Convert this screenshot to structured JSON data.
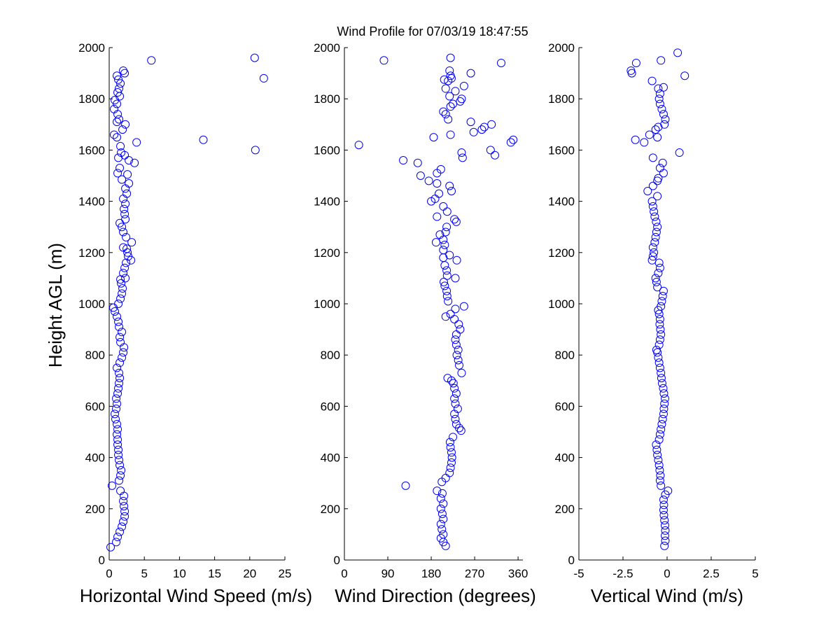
{
  "chart_data": [
    {
      "type": "scatter",
      "title": "Wind Profile for  07/03/19 18:47:55",
      "xlabel": "Horizontal Wind Speed (m/s)",
      "ylabel": "Height AGL (m)",
      "xlim": [
        0,
        25
      ],
      "ylim": [
        0,
        2000
      ],
      "xticks": [
        "0",
        "5",
        "10",
        "15",
        "20",
        "25"
      ],
      "yticks": [
        "0",
        "200",
        "400",
        "600",
        "800",
        "1000",
        "1200",
        "1400",
        "1600",
        "1800",
        "2000"
      ],
      "marker_color": "#0000ff",
      "points": [
        [
          0.2,
          50
        ],
        [
          1.0,
          70
        ],
        [
          1.2,
          90
        ],
        [
          1.5,
          110
        ],
        [
          1.8,
          130
        ],
        [
          2.0,
          150
        ],
        [
          2.2,
          170
        ],
        [
          2.2,
          190
        ],
        [
          2.1,
          210
        ],
        [
          2.0,
          230
        ],
        [
          2.1,
          250
        ],
        [
          1.6,
          270
        ],
        [
          0.4,
          290
        ],
        [
          1.4,
          310
        ],
        [
          1.6,
          330
        ],
        [
          1.7,
          350
        ],
        [
          1.5,
          370
        ],
        [
          1.4,
          390
        ],
        [
          1.3,
          410
        ],
        [
          1.3,
          430
        ],
        [
          1.2,
          450
        ],
        [
          1.2,
          470
        ],
        [
          1.1,
          490
        ],
        [
          1.2,
          510
        ],
        [
          1.1,
          530
        ],
        [
          0.9,
          550
        ],
        [
          0.8,
          570
        ],
        [
          1.0,
          590
        ],
        [
          1.1,
          610
        ],
        [
          1.0,
          630
        ],
        [
          1.2,
          650
        ],
        [
          1.3,
          670
        ],
        [
          1.4,
          690
        ],
        [
          1.5,
          710
        ],
        [
          1.4,
          730
        ],
        [
          1.1,
          750
        ],
        [
          1.5,
          770
        ],
        [
          1.8,
          790
        ],
        [
          2.0,
          810
        ],
        [
          2.1,
          830
        ],
        [
          1.6,
          850
        ],
        [
          1.5,
          870
        ],
        [
          1.8,
          890
        ],
        [
          1.4,
          910
        ],
        [
          1.3,
          930
        ],
        [
          1.1,
          950
        ],
        [
          0.8,
          970
        ],
        [
          0.6,
          985
        ],
        [
          1.3,
          1000
        ],
        [
          1.6,
          1020
        ],
        [
          1.8,
          1040
        ],
        [
          1.9,
          1060
        ],
        [
          1.7,
          1080
        ],
        [
          1.6,
          1095
        ],
        [
          2.3,
          1100
        ],
        [
          2.0,
          1120
        ],
        [
          2.2,
          1140
        ],
        [
          2.4,
          1160
        ],
        [
          3.1,
          1170
        ],
        [
          2.7,
          1185
        ],
        [
          2.6,
          1200
        ],
        [
          2.5,
          1215
        ],
        [
          2.0,
          1220
        ],
        [
          3.2,
          1240
        ],
        [
          2.4,
          1260
        ],
        [
          2.0,
          1280
        ],
        [
          1.8,
          1300
        ],
        [
          1.5,
          1315
        ],
        [
          2.3,
          1330
        ],
        [
          2.2,
          1350
        ],
        [
          2.1,
          1370
        ],
        [
          2.3,
          1390
        ],
        [
          2.0,
          1410
        ],
        [
          2.5,
          1430
        ],
        [
          2.3,
          1450
        ],
        [
          2.8,
          1470
        ],
        [
          1.8,
          1485
        ],
        [
          2.6,
          1505
        ],
        [
          1.2,
          1510
        ],
        [
          1.5,
          1530
        ],
        [
          3.6,
          1550
        ],
        [
          2.8,
          1560
        ],
        [
          1.3,
          1570
        ],
        [
          2.2,
          1580
        ],
        [
          1.7,
          1590
        ],
        [
          1.6,
          1615
        ],
        [
          3.9,
          1630
        ],
        [
          13.4,
          1640
        ],
        [
          20.8,
          1600
        ],
        [
          1.1,
          1650
        ],
        [
          0.7,
          1660
        ],
        [
          1.9,
          1680
        ],
        [
          2.3,
          1700
        ],
        [
          1.1,
          1710
        ],
        [
          1.4,
          1720
        ],
        [
          1.2,
          1740
        ],
        [
          0.7,
          1760
        ],
        [
          1.1,
          1780
        ],
        [
          0.8,
          1795
        ],
        [
          1.5,
          1810
        ],
        [
          1.2,
          1825
        ],
        [
          1.4,
          1840
        ],
        [
          1.6,
          1860
        ],
        [
          1.3,
          1875
        ],
        [
          1.1,
          1890
        ],
        [
          2.0,
          1910
        ],
        [
          2.2,
          1900
        ],
        [
          6.0,
          1950
        ],
        [
          20.7,
          1960
        ],
        [
          22.0,
          1880
        ]
      ]
    },
    {
      "type": "scatter",
      "xlabel": "Wind Direction (degrees)",
      "ylabel": "",
      "xlim": [
        0,
        370
      ],
      "ylim": [
        0,
        2000
      ],
      "xticks": [
        "0",
        "90",
        "180",
        "270",
        "360"
      ],
      "xtick_values": [
        0,
        90,
        180,
        270,
        360
      ],
      "yticks": [
        "0",
        "200",
        "400",
        "600",
        "800",
        "1000",
        "1200",
        "1400",
        "1600",
        "1800",
        "2000"
      ],
      "marker_color": "#0000ff",
      "points": [
        [
          210,
          55
        ],
        [
          205,
          70
        ],
        [
          200,
          85
        ],
        [
          205,
          100
        ],
        [
          202,
          120
        ],
        [
          200,
          140
        ],
        [
          205,
          160
        ],
        [
          203,
          180
        ],
        [
          200,
          200
        ],
        [
          205,
          220
        ],
        [
          200,
          240
        ],
        [
          203,
          260
        ],
        [
          192,
          270
        ],
        [
          127,
          290
        ],
        [
          202,
          305
        ],
        [
          210,
          320
        ],
        [
          218,
          340
        ],
        [
          220,
          360
        ],
        [
          222,
          380
        ],
        [
          223,
          400
        ],
        [
          222,
          420
        ],
        [
          220,
          440
        ],
        [
          219,
          460
        ],
        [
          225,
          480
        ],
        [
          242,
          505
        ],
        [
          238,
          515
        ],
        [
          232,
          530
        ],
        [
          230,
          550
        ],
        [
          228,
          570
        ],
        [
          235,
          590
        ],
        [
          230,
          610
        ],
        [
          228,
          630
        ],
        [
          232,
          650
        ],
        [
          228,
          670
        ],
        [
          226,
          690
        ],
        [
          222,
          700
        ],
        [
          214,
          710
        ],
        [
          243,
          730
        ],
        [
          238,
          760
        ],
        [
          236,
          780
        ],
        [
          233,
          800
        ],
        [
          236,
          820
        ],
        [
          232,
          840
        ],
        [
          230,
          860
        ],
        [
          232,
          880
        ],
        [
          240,
          900
        ],
        [
          237,
          920
        ],
        [
          228,
          940
        ],
        [
          210,
          950
        ],
        [
          220,
          960
        ],
        [
          230,
          980
        ],
        [
          248,
          990
        ],
        [
          215,
          1010
        ],
        [
          213,
          1030
        ],
        [
          212,
          1050
        ],
        [
          208,
          1070
        ],
        [
          206,
          1085
        ],
        [
          230,
          1100
        ],
        [
          213,
          1110
        ],
        [
          212,
          1130
        ],
        [
          208,
          1150
        ],
        [
          233,
          1170
        ],
        [
          205,
          1180
        ],
        [
          218,
          1190
        ],
        [
          205,
          1210
        ],
        [
          208,
          1230
        ],
        [
          190,
          1240
        ],
        [
          205,
          1250
        ],
        [
          198,
          1270
        ],
        [
          210,
          1280
        ],
        [
          212,
          1300
        ],
        [
          232,
          1320
        ],
        [
          228,
          1330
        ],
        [
          192,
          1340
        ],
        [
          213,
          1360
        ],
        [
          205,
          1380
        ],
        [
          180,
          1400
        ],
        [
          188,
          1410
        ],
        [
          196,
          1430
        ],
        [
          222,
          1440
        ],
        [
          218,
          1460
        ],
        [
          192,
          1470
        ],
        [
          175,
          1480
        ],
        [
          158,
          1500
        ],
        [
          192,
          1510
        ],
        [
          200,
          1525
        ],
        [
          152,
          1550
        ],
        [
          122,
          1560
        ],
        [
          245,
          1570
        ],
        [
          243,
          1590
        ],
        [
          312,
          1580
        ],
        [
          303,
          1600
        ],
        [
          30,
          1620
        ],
        [
          185,
          1650
        ],
        [
          220,
          1660
        ],
        [
          345,
          1630
        ],
        [
          350,
          1640
        ],
        [
          268,
          1670
        ],
        [
          285,
          1680
        ],
        [
          290,
          1690
        ],
        [
          262,
          1710
        ],
        [
          305,
          1700
        ],
        [
          215,
          1720
        ],
        [
          210,
          1740
        ],
        [
          205,
          1750
        ],
        [
          220,
          1770
        ],
        [
          225,
          1780
        ],
        [
          240,
          1790
        ],
        [
          243,
          1800
        ],
        [
          218,
          1810
        ],
        [
          230,
          1830
        ],
        [
          210,
          1840
        ],
        [
          248,
          1850
        ],
        [
          215,
          1870
        ],
        [
          207,
          1875
        ],
        [
          222,
          1880
        ],
        [
          220,
          1890
        ],
        [
          262,
          1900
        ],
        [
          218,
          1910
        ],
        [
          325,
          1940
        ],
        [
          82,
          1950
        ],
        [
          220,
          1960
        ]
      ]
    },
    {
      "type": "scatter",
      "xlabel": "Vertical Wind (m/s)",
      "ylabel": "",
      "xlim": [
        -5,
        5
      ],
      "ylim": [
        0,
        2000
      ],
      "xticks": [
        "-5",
        "-2.5",
        "0",
        "2.5",
        "5"
      ],
      "xtick_values": [
        -5,
        -2.5,
        0,
        2.5,
        5
      ],
      "yticks": [
        "0",
        "200",
        "400",
        "600",
        "800",
        "1000",
        "1200",
        "1400",
        "1600",
        "1800",
        "2000"
      ],
      "marker_color": "#0000ff",
      "points": [
        [
          -0.15,
          55
        ],
        [
          -0.1,
          75
        ],
        [
          -0.12,
          95
        ],
        [
          -0.1,
          115
        ],
        [
          -0.12,
          135
        ],
        [
          -0.15,
          155
        ],
        [
          -0.18,
          175
        ],
        [
          -0.2,
          195
        ],
        [
          -0.18,
          215
        ],
        [
          -0.2,
          235
        ],
        [
          -0.1,
          255
        ],
        [
          0.05,
          270
        ],
        [
          -0.35,
          290
        ],
        [
          -0.4,
          310
        ],
        [
          -0.38,
          330
        ],
        [
          -0.42,
          350
        ],
        [
          -0.45,
          370
        ],
        [
          -0.5,
          390
        ],
        [
          -0.55,
          410
        ],
        [
          -0.58,
          430
        ],
        [
          -0.62,
          450
        ],
        [
          -0.45,
          470
        ],
        [
          -0.4,
          490
        ],
        [
          -0.35,
          510
        ],
        [
          -0.3,
          530
        ],
        [
          -0.25,
          550
        ],
        [
          -0.2,
          570
        ],
        [
          -0.18,
          590
        ],
        [
          -0.15,
          610
        ],
        [
          -0.12,
          630
        ],
        [
          -0.18,
          650
        ],
        [
          -0.22,
          670
        ],
        [
          -0.28,
          690
        ],
        [
          -0.32,
          710
        ],
        [
          -0.35,
          730
        ],
        [
          -0.4,
          750
        ],
        [
          -0.45,
          770
        ],
        [
          -0.5,
          790
        ],
        [
          -0.55,
          810
        ],
        [
          -0.6,
          820
        ],
        [
          -0.45,
          840
        ],
        [
          -0.4,
          860
        ],
        [
          -0.35,
          880
        ],
        [
          -0.38,
          900
        ],
        [
          -0.42,
          920
        ],
        [
          -0.4,
          940
        ],
        [
          -0.45,
          960
        ],
        [
          -0.5,
          975
        ],
        [
          -0.35,
          990
        ],
        [
          -0.3,
          1010
        ],
        [
          -0.25,
          1030
        ],
        [
          -0.2,
          1050
        ],
        [
          -0.55,
          1065
        ],
        [
          -0.6,
          1085
        ],
        [
          -0.65,
          1100
        ],
        [
          -0.5,
          1120
        ],
        [
          -0.4,
          1140
        ],
        [
          -0.45,
          1160
        ],
        [
          -0.85,
          1170
        ],
        [
          -0.8,
          1185
        ],
        [
          -0.75,
          1200
        ],
        [
          -0.8,
          1220
        ],
        [
          -0.7,
          1240
        ],
        [
          -0.65,
          1260
        ],
        [
          -0.6,
          1280
        ],
        [
          -0.55,
          1300
        ],
        [
          -0.62,
          1320
        ],
        [
          -0.7,
          1340
        ],
        [
          -0.75,
          1360
        ],
        [
          -0.8,
          1380
        ],
        [
          -0.85,
          1400
        ],
        [
          -0.55,
          1420
        ],
        [
          -1.1,
          1440
        ],
        [
          -0.8,
          1460
        ],
        [
          -0.55,
          1480
        ],
        [
          -0.5,
          1490
        ],
        [
          -0.2,
          1510
        ],
        [
          -0.4,
          1530
        ],
        [
          -0.25,
          1550
        ],
        [
          -0.8,
          1570
        ],
        [
          0.7,
          1590
        ],
        [
          -1.8,
          1640
        ],
        [
          -1.3,
          1630
        ],
        [
          -1.0,
          1660
        ],
        [
          -0.65,
          1680
        ],
        [
          -0.5,
          1690
        ],
        [
          -0.15,
          1700
        ],
        [
          -0.1,
          1720
        ],
        [
          -0.2,
          1740
        ],
        [
          -0.3,
          1760
        ],
        [
          -0.4,
          1780
        ],
        [
          -0.45,
          1800
        ],
        [
          -0.4,
          1820
        ],
        [
          -0.5,
          1840
        ],
        [
          -0.2,
          1845
        ],
        [
          -0.85,
          1870
        ],
        [
          -2.0,
          1900
        ],
        [
          -2.05,
          1910
        ],
        [
          -1.75,
          1940
        ],
        [
          -0.35,
          1950
        ],
        [
          0.6,
          1980
        ],
        [
          1.0,
          1890
        ],
        [
          -0.55,
          1650
        ]
      ]
    }
  ]
}
